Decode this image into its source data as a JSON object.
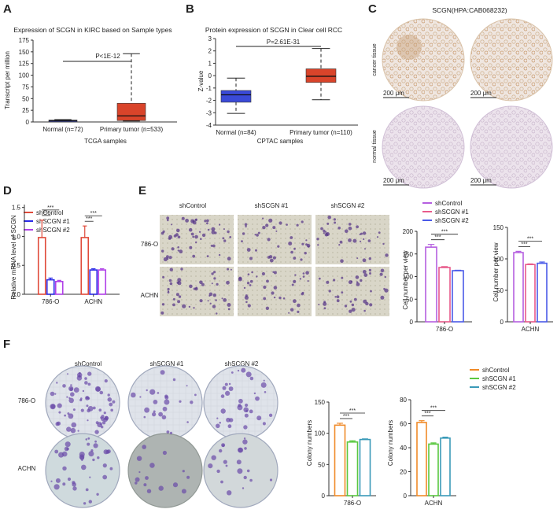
{
  "panels": {
    "A": {
      "label": "A"
    },
    "B": {
      "label": "B"
    },
    "C": {
      "label": "C"
    },
    "D": {
      "label": "D"
    },
    "E": {
      "label": "E"
    },
    "F": {
      "label": "F"
    }
  },
  "colors": {
    "shControl_line": "#e04a3a",
    "shSCGN1_line": "#2a2ae8",
    "shSCGN2_line": "#b040e8",
    "E_shControl": "#b55fe0",
    "E_shSCGN1": "#e85a8a",
    "E_shSCGN2": "#4a5ae8",
    "F_shControl": "#f08a28",
    "F_shSCGN1": "#5ac840",
    "F_shSCGN2": "#3a9ab8",
    "tumor_box": "#d9442a",
    "normal_box": "#3a4ad8",
    "stain_brown": "#c8a078",
    "stain_purple": "#8a6aa8",
    "crystal_violet": "#5a3a8a"
  },
  "chart_data": [
    {
      "id": "A",
      "type": "box",
      "title": "Expression of SCGN in KIRC based on Sample types",
      "ylabel": "Transcript per million",
      "xlabel": "TCGA samples",
      "yticks": [
        0,
        25,
        50,
        75,
        100,
        125,
        150,
        175
      ],
      "ylim": [
        0,
        175
      ],
      "categories": [
        "Normal (n=72)",
        "Primary tumor (n=533)"
      ],
      "boxes": [
        {
          "min": 1,
          "q1": 2,
          "median": 3,
          "q3": 4,
          "max": 5,
          "color": "#3a4ad8"
        },
        {
          "min": 2,
          "q1": 3,
          "median": 13,
          "q3": 40,
          "max": 146,
          "color": "#d9442a"
        }
      ],
      "annotation": "P<1E-12"
    },
    {
      "id": "B",
      "type": "box",
      "title": "Protein expression of SCGN in Clear cell RCC",
      "ylabel": "Z-value",
      "xlabel": "CPTAC samples",
      "yticks": [
        -4,
        -3,
        -2,
        -1,
        0,
        1,
        2,
        3
      ],
      "ylim": [
        -4,
        3
      ],
      "categories": [
        "Normal (n=84)",
        "Primary tumor (n=110)"
      ],
      "boxes": [
        {
          "min": -3.05,
          "q1": -2.15,
          "median": -1.55,
          "q3": -1.2,
          "max": -0.2,
          "color": "#3a4ad8"
        },
        {
          "min": -1.95,
          "q1": -0.55,
          "median": -0.05,
          "q3": 0.55,
          "max": 2.2,
          "color": "#d9442a"
        }
      ],
      "annotation": "P=2.61E-31"
    },
    {
      "id": "D",
      "type": "bar",
      "ylabel": "Relative mRNA level of SCGN",
      "yticks": [
        0.0,
        0.5,
        1.0,
        1.5
      ],
      "ylim": [
        0,
        1.55
      ],
      "categories": [
        "786-O",
        "ACHN"
      ],
      "series": [
        {
          "name": "shControl",
          "values": [
            0.98,
            0.98
          ],
          "errors": [
            0.3,
            0.2
          ]
        },
        {
          "name": "shSCGN #1",
          "values": [
            0.25,
            0.42
          ],
          "errors": [
            0.03,
            0.02
          ]
        },
        {
          "name": "shSCGN #2",
          "values": [
            0.22,
            0.42
          ],
          "errors": [
            0.02,
            0.02
          ]
        }
      ],
      "sig": "***"
    },
    {
      "id": "E1",
      "type": "bar",
      "ylabel": "Cell number per view",
      "yticks": [
        0,
        50,
        100,
        150,
        200
      ],
      "ylim": [
        0,
        200
      ],
      "categories": [
        "786-O"
      ],
      "series": [
        {
          "name": "shControl",
          "values": [
            165
          ],
          "errors": [
            6
          ]
        },
        {
          "name": "shSCGN #1",
          "values": [
            120
          ],
          "errors": [
            2
          ]
        },
        {
          "name": "shSCGN #2",
          "values": [
            113
          ],
          "errors": [
            1
          ]
        }
      ],
      "sig": "***"
    },
    {
      "id": "E2",
      "type": "bar",
      "ylabel": "Cell number per view",
      "yticks": [
        0,
        50,
        100,
        150
      ],
      "ylim": [
        0,
        150
      ],
      "categories": [
        "ACHN"
      ],
      "series": [
        {
          "name": "shControl",
          "values": [
            110
          ],
          "errors": [
            2
          ]
        },
        {
          "name": "shSCGN #1",
          "values": [
            91
          ],
          "errors": [
            1
          ]
        },
        {
          "name": "shSCGN #2",
          "values": [
            93
          ],
          "errors": [
            2
          ]
        }
      ],
      "sig": "***"
    },
    {
      "id": "F1",
      "type": "bar",
      "ylabel": "Colony numbers",
      "yticks": [
        0,
        50,
        100,
        150
      ],
      "ylim": [
        0,
        150
      ],
      "categories": [
        "786-O"
      ],
      "series": [
        {
          "name": "shControl",
          "values": [
            113
          ],
          "errors": [
            3
          ]
        },
        {
          "name": "shSCGN #1",
          "values": [
            86
          ],
          "errors": [
            2
          ]
        },
        {
          "name": "shSCGN #2",
          "values": [
            90
          ],
          "errors": [
            1
          ]
        }
      ],
      "sig": "***"
    },
    {
      "id": "F2",
      "type": "bar",
      "ylabel": "Colony numbers",
      "yticks": [
        0,
        20,
        40,
        60,
        80
      ],
      "ylim": [
        0,
        80
      ],
      "categories": [
        "ACHN"
      ],
      "series": [
        {
          "name": "shControl",
          "values": [
            61
          ],
          "errors": [
            1.5
          ]
        },
        {
          "name": "shSCGN #1",
          "values": [
            43
          ],
          "errors": [
            1
          ]
        },
        {
          "name": "shSCGN #2",
          "values": [
            48
          ],
          "errors": [
            0.8
          ]
        }
      ],
      "sig": "***"
    }
  ],
  "panelC": {
    "title": "SCGN(HPA:CAB068232)",
    "row_labels": [
      "cancer tissue",
      "normal tissue"
    ],
    "scale_bar": "200 μm"
  },
  "panelE": {
    "columns": [
      "shControl",
      "shSCGN #1",
      "shSCGN #2"
    ],
    "rows": [
      "786-O",
      "ACHN"
    ],
    "legend": [
      "shControl",
      "shSCGN #1",
      "shSCGN #2"
    ]
  },
  "panelF": {
    "columns": [
      "shControl",
      "shSCGN #1",
      "shSCGN #2"
    ],
    "rows": [
      "786-O",
      "ACHN"
    ],
    "legend": [
      "shControl",
      "shSCGN #1",
      "shSCGN #2"
    ]
  }
}
